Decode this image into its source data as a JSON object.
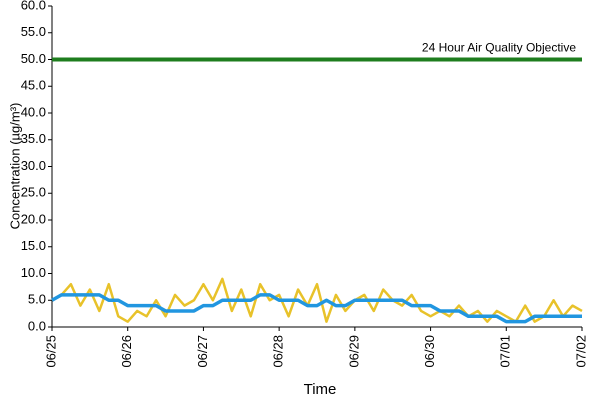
{
  "chart_data": {
    "type": "line",
    "y_label": "Concentration (µg/m³)",
    "x_label": "Time",
    "xlim": [
      0,
      7
    ],
    "xticks": [
      {
        "value": 0,
        "label": "06/25"
      },
      {
        "value": 1,
        "label": "06/26"
      },
      {
        "value": 2,
        "label": "06/27"
      },
      {
        "value": 3,
        "label": "06/28"
      },
      {
        "value": 4,
        "label": "06/29"
      },
      {
        "value": 5,
        "label": "06/30"
      },
      {
        "value": 6,
        "label": "07/01"
      },
      {
        "value": 7,
        "label": "07/02"
      }
    ],
    "ylim": [
      0,
      60
    ],
    "yticks": [
      {
        "value": 0,
        "label": "0.0"
      },
      {
        "value": 5,
        "label": "5.0"
      },
      {
        "value": 10,
        "label": "10.0"
      },
      {
        "value": 15,
        "label": "15.0"
      },
      {
        "value": 20,
        "label": "20.0"
      },
      {
        "value": 25,
        "label": "25.0"
      },
      {
        "value": 30,
        "label": "30.0"
      },
      {
        "value": 35,
        "label": "35.0"
      },
      {
        "value": 40,
        "label": "40.0"
      },
      {
        "value": 45,
        "label": "45.0"
      },
      {
        "value": 50,
        "label": "50.0"
      },
      {
        "value": 55,
        "label": "55.0"
      },
      {
        "value": 60,
        "label": "60.0"
      }
    ],
    "grid": false,
    "reference_line": {
      "value": 50,
      "label": "24 Hour Air Quality Objective",
      "color": "#1e7d1e"
    },
    "x": [
      0,
      0.125,
      0.25,
      0.375,
      0.5,
      0.625,
      0.75,
      0.875,
      1,
      1.125,
      1.25,
      1.375,
      1.5,
      1.625,
      1.75,
      1.875,
      2,
      2.125,
      2.25,
      2.375,
      2.5,
      2.625,
      2.75,
      2.875,
      3,
      3.125,
      3.25,
      3.375,
      3.5,
      3.625,
      3.75,
      3.875,
      4,
      4.125,
      4.25,
      4.375,
      4.5,
      4.625,
      4.75,
      4.875,
      5,
      5.125,
      5.25,
      5.375,
      5.5,
      5.625,
      5.75,
      5.875,
      6,
      6.125,
      6.25,
      6.375,
      6.5,
      6.625,
      6.75,
      6.875,
      7
    ],
    "series": [
      {
        "color": "#e8c22a",
        "values": [
          5,
          6,
          8,
          4,
          7,
          3,
          8,
          2,
          1,
          3,
          2,
          5,
          2,
          6,
          4,
          5,
          8,
          5,
          9,
          3,
          7,
          2,
          8,
          5,
          6,
          2,
          7,
          4,
          8,
          1,
          6,
          3,
          5,
          6,
          3,
          7,
          5,
          4,
          6,
          3,
          2,
          3,
          2,
          4,
          2,
          3,
          1,
          3,
          2,
          1,
          4,
          1,
          2,
          5,
          2,
          4,
          3
        ]
      },
      {
        "color": "#2196e0",
        "values": [
          5,
          6,
          6,
          6,
          6,
          6,
          5,
          5,
          4,
          4,
          4,
          4,
          3,
          3,
          3,
          3,
          4,
          4,
          5,
          5,
          5,
          5,
          6,
          6,
          5,
          5,
          5,
          4,
          4,
          5,
          4,
          4,
          5,
          5,
          5,
          5,
          5,
          5,
          4,
          4,
          4,
          3,
          3,
          3,
          2,
          2,
          2,
          2,
          1,
          1,
          1,
          2,
          2,
          2,
          2,
          2,
          2
        ]
      }
    ]
  }
}
